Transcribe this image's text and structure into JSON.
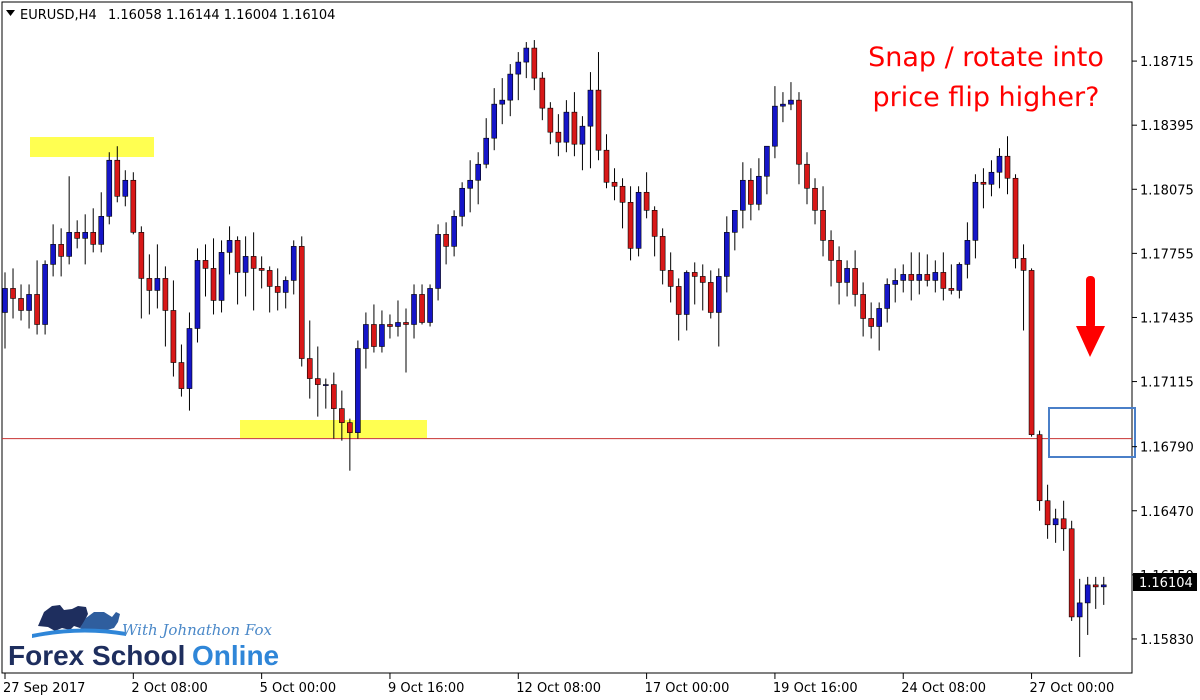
{
  "header": {
    "symbol": "EURUSD,H4",
    "ohlc": "1.16058 1.16144 1.16004 1.16104"
  },
  "annotation": {
    "line1": "Snap / rotate into",
    "line2": "price flip higher?"
  },
  "brand": {
    "tagline": "With Johnathon Fox",
    "name_part1": "Forex School",
    "name_part2": "Online"
  },
  "colors": {
    "bull": "#1515c8",
    "bear": "#d81818",
    "wick": "#000000",
    "level_line": "#c83232",
    "highlight": "#ffff33",
    "box": "#4a7fc8",
    "arrow": "#ff0000",
    "price_label_bg": "#000000",
    "price_label_text": "#ffffff"
  },
  "chart_data": {
    "type": "candlestick",
    "y_ticks": [
      "1.18715",
      "1.18395",
      "1.18075",
      "1.17755",
      "1.17435",
      "1.17115",
      "1.16790",
      "1.16470",
      "1.16150",
      "1.15830"
    ],
    "x_ticks": [
      "27 Sep 2017",
      "2 Oct 08:00",
      "5 Oct 00:00",
      "9 Oct 16:00",
      "12 Oct 08:00",
      "17 Oct 00:00",
      "19 Oct 16:00",
      "24 Oct 08:00",
      "27 Oct 00:00"
    ],
    "current_price": "1.16104",
    "horizontal_level": 1.1683,
    "ylim": [
      1.1566,
      1.1901
    ],
    "candles": [
      [
        1.1746,
        1.1766,
        1.1728,
        1.1758
      ],
      [
        1.1758,
        1.1768,
        1.1743,
        1.1753
      ],
      [
        1.1753,
        1.176,
        1.1742,
        1.1747
      ],
      [
        1.1747,
        1.176,
        1.1738,
        1.1755
      ],
      [
        1.1755,
        1.1772,
        1.1735,
        1.174
      ],
      [
        1.174,
        1.1772,
        1.1735,
        1.177
      ],
      [
        1.177,
        1.179,
        1.1764,
        1.178
      ],
      [
        1.178,
        1.1788,
        1.1764,
        1.1774
      ],
      [
        1.1774,
        1.1814,
        1.177,
        1.1786
      ],
      [
        1.1786,
        1.1792,
        1.1778,
        1.1783
      ],
      [
        1.1783,
        1.1795,
        1.177,
        1.1786
      ],
      [
        1.1786,
        1.1798,
        1.1776,
        1.178
      ],
      [
        1.178,
        1.1806,
        1.1776,
        1.1794
      ],
      [
        1.1794,
        1.1826,
        1.179,
        1.1822
      ],
      [
        1.1822,
        1.1829,
        1.1801,
        1.1804
      ],
      [
        1.1804,
        1.1817,
        1.1799,
        1.1812
      ],
      [
        1.1812,
        1.1816,
        1.1785,
        1.1786
      ],
      [
        1.1786,
        1.1789,
        1.1743,
        1.1763
      ],
      [
        1.1763,
        1.1775,
        1.1745,
        1.1757
      ],
      [
        1.1757,
        1.178,
        1.1748,
        1.1763
      ],
      [
        1.1763,
        1.1769,
        1.1729,
        1.1747
      ],
      [
        1.1747,
        1.1762,
        1.1714,
        1.1721
      ],
      [
        1.1721,
        1.173,
        1.1704,
        1.1708
      ],
      [
        1.1708,
        1.1746,
        1.1697,
        1.1738
      ],
      [
        1.1738,
        1.1778,
        1.1731,
        1.1772
      ],
      [
        1.1772,
        1.178,
        1.1754,
        1.1768
      ],
      [
        1.1768,
        1.1783,
        1.1745,
        1.1752
      ],
      [
        1.1752,
        1.1782,
        1.1746,
        1.1776
      ],
      [
        1.1776,
        1.1789,
        1.1765,
        1.1782
      ],
      [
        1.1782,
        1.1784,
        1.175,
        1.1766
      ],
      [
        1.1766,
        1.1784,
        1.1754,
        1.1774
      ],
      [
        1.1774,
        1.1786,
        1.1747,
        1.1768
      ],
      [
        1.1768,
        1.1774,
        1.1758,
        1.1767
      ],
      [
        1.1767,
        1.1769,
        1.1746,
        1.1759
      ],
      [
        1.1759,
        1.1768,
        1.1747,
        1.1756
      ],
      [
        1.1756,
        1.1764,
        1.1748,
        1.1762
      ],
      [
        1.1762,
        1.1782,
        1.1755,
        1.1779
      ],
      [
        1.1779,
        1.1784,
        1.1719,
        1.1723
      ],
      [
        1.1723,
        1.1742,
        1.1703,
        1.1713
      ],
      [
        1.1713,
        1.1729,
        1.1694,
        1.171
      ],
      [
        1.171,
        1.1713,
        1.1698,
        1.171
      ],
      [
        1.171,
        1.1716,
        1.1683,
        1.1698
      ],
      [
        1.1698,
        1.1707,
        1.1682,
        1.1691
      ],
      [
        1.1691,
        1.1693,
        1.1667,
        1.1686
      ],
      [
        1.1686,
        1.1732,
        1.1683,
        1.1728
      ],
      [
        1.1728,
        1.1746,
        1.1718,
        1.174
      ],
      [
        1.174,
        1.175,
        1.1726,
        1.1729
      ],
      [
        1.1729,
        1.1747,
        1.1726,
        1.174
      ],
      [
        1.174,
        1.1745,
        1.1733,
        1.1739
      ],
      [
        1.1739,
        1.1752,
        1.1734,
        1.1741
      ],
      [
        1.1741,
        1.1748,
        1.1716,
        1.174
      ],
      [
        1.174,
        1.176,
        1.1733,
        1.1755
      ],
      [
        1.1755,
        1.176,
        1.174,
        1.1741
      ],
      [
        1.1741,
        1.176,
        1.1739,
        1.1758
      ],
      [
        1.1758,
        1.179,
        1.1752,
        1.1785
      ],
      [
        1.1785,
        1.1791,
        1.177,
        1.1779
      ],
      [
        1.1779,
        1.1797,
        1.1774,
        1.1794
      ],
      [
        1.1794,
        1.1811,
        1.1789,
        1.1808
      ],
      [
        1.1808,
        1.1822,
        1.1796,
        1.1812
      ],
      [
        1.1812,
        1.1826,
        1.18,
        1.182
      ],
      [
        1.182,
        1.1843,
        1.1818,
        1.1833
      ],
      [
        1.1833,
        1.1858,
        1.1827,
        1.185
      ],
      [
        1.185,
        1.1863,
        1.184,
        1.1852
      ],
      [
        1.1852,
        1.187,
        1.1844,
        1.1865
      ],
      [
        1.1865,
        1.1876,
        1.1852,
        1.1871
      ],
      [
        1.1871,
        1.1881,
        1.1863,
        1.1878
      ],
      [
        1.1878,
        1.1882,
        1.1857,
        1.1863
      ],
      [
        1.1863,
        1.1866,
        1.1842,
        1.1848
      ],
      [
        1.1848,
        1.1851,
        1.183,
        1.1836
      ],
      [
        1.1836,
        1.1845,
        1.1824,
        1.1831
      ],
      [
        1.1831,
        1.1852,
        1.1826,
        1.1846
      ],
      [
        1.1846,
        1.1856,
        1.1824,
        1.183
      ],
      [
        1.183,
        1.1844,
        1.1817,
        1.1839
      ],
      [
        1.1839,
        1.1866,
        1.1818,
        1.1857
      ],
      [
        1.1857,
        1.1876,
        1.1822,
        1.1827
      ],
      [
        1.1827,
        1.1835,
        1.1808,
        1.1811
      ],
      [
        1.1811,
        1.1818,
        1.1802,
        1.1809
      ],
      [
        1.1809,
        1.1813,
        1.1788,
        1.1801
      ],
      [
        1.1801,
        1.1809,
        1.1772,
        1.1778
      ],
      [
        1.1778,
        1.1809,
        1.1774,
        1.1806
      ],
      [
        1.1806,
        1.1816,
        1.1793,
        1.1797
      ],
      [
        1.1797,
        1.1799,
        1.1774,
        1.1784
      ],
      [
        1.1784,
        1.1788,
        1.176,
        1.1767
      ],
      [
        1.1767,
        1.1776,
        1.1751,
        1.1759
      ],
      [
        1.1759,
        1.1763,
        1.1732,
        1.1745
      ],
      [
        1.1745,
        1.1767,
        1.1737,
        1.1766
      ],
      [
        1.1766,
        1.1771,
        1.175,
        1.1764
      ],
      [
        1.1764,
        1.177,
        1.1747,
        1.1761
      ],
      [
        1.1761,
        1.1767,
        1.1743,
        1.1746
      ],
      [
        1.1746,
        1.1768,
        1.1729,
        1.1764
      ],
      [
        1.1764,
        1.1794,
        1.1756,
        1.1786
      ],
      [
        1.1786,
        1.1797,
        1.1777,
        1.1797
      ],
      [
        1.1797,
        1.1821,
        1.1788,
        1.1812
      ],
      [
        1.1812,
        1.1818,
        1.1792,
        1.18
      ],
      [
        1.18,
        1.1823,
        1.1797,
        1.1814
      ],
      [
        1.1814,
        1.1829,
        1.1805,
        1.1829
      ],
      [
        1.1829,
        1.1859,
        1.1823,
        1.1849
      ],
      [
        1.1849,
        1.1856,
        1.1841,
        1.185
      ],
      [
        1.185,
        1.1861,
        1.1847,
        1.1852
      ],
      [
        1.1852,
        1.1856,
        1.181,
        1.182
      ],
      [
        1.182,
        1.1826,
        1.18,
        1.1808
      ],
      [
        1.1808,
        1.1813,
        1.179,
        1.1797
      ],
      [
        1.1797,
        1.1809,
        1.1774,
        1.1782
      ],
      [
        1.1782,
        1.1787,
        1.1759,
        1.1772
      ],
      [
        1.1772,
        1.1779,
        1.175,
        1.1761
      ],
      [
        1.1761,
        1.1772,
        1.1754,
        1.1768
      ],
      [
        1.1768,
        1.1777,
        1.1749,
        1.1755
      ],
      [
        1.1755,
        1.1761,
        1.1734,
        1.1743
      ],
      [
        1.1743,
        1.1751,
        1.1733,
        1.1739
      ],
      [
        1.1739,
        1.1751,
        1.1727,
        1.1748
      ],
      [
        1.1748,
        1.1763,
        1.1741,
        1.176
      ],
      [
        1.176,
        1.1768,
        1.1751,
        1.1762
      ],
      [
        1.1762,
        1.177,
        1.1756,
        1.1765
      ],
      [
        1.1765,
        1.1776,
        1.1752,
        1.1762
      ],
      [
        1.1762,
        1.1776,
        1.1755,
        1.1765
      ],
      [
        1.1765,
        1.1775,
        1.1759,
        1.1762
      ],
      [
        1.1762,
        1.1772,
        1.1756,
        1.1766
      ],
      [
        1.1766,
        1.1776,
        1.1752,
        1.1758
      ],
      [
        1.1758,
        1.177,
        1.1755,
        1.1757
      ],
      [
        1.1757,
        1.1771,
        1.1753,
        1.177
      ],
      [
        1.177,
        1.1791,
        1.1763,
        1.1782
      ],
      [
        1.1782,
        1.1815,
        1.1773,
        1.1811
      ],
      [
        1.1811,
        1.1818,
        1.1798,
        1.181
      ],
      [
        1.181,
        1.1822,
        1.1804,
        1.1816
      ],
      [
        1.1816,
        1.1828,
        1.1808,
        1.1824
      ],
      [
        1.1824,
        1.1834,
        1.1805,
        1.1813
      ],
      [
        1.1813,
        1.1815,
        1.1768,
        1.1773
      ],
      [
        1.1773,
        1.178,
        1.1737,
        1.1767
      ],
      [
        1.1767,
        1.1768,
        1.1684,
        1.1685
      ],
      [
        1.1685,
        1.1687,
        1.1647,
        1.1652
      ],
      [
        1.1652,
        1.166,
        1.1633,
        1.164
      ],
      [
        1.164,
        1.1648,
        1.1631,
        1.1643
      ],
      [
        1.1643,
        1.1652,
        1.1627,
        1.1638
      ],
      [
        1.1638,
        1.1642,
        1.1592,
        1.1594
      ],
      [
        1.1594,
        1.1613,
        1.1574,
        1.1601
      ],
      [
        1.1601,
        1.1614,
        1.1585,
        1.161
      ],
      [
        1.161,
        1.1614,
        1.1598,
        1.1609
      ],
      [
        1.1609,
        1.1614,
        1.16,
        1.161
      ]
    ]
  }
}
